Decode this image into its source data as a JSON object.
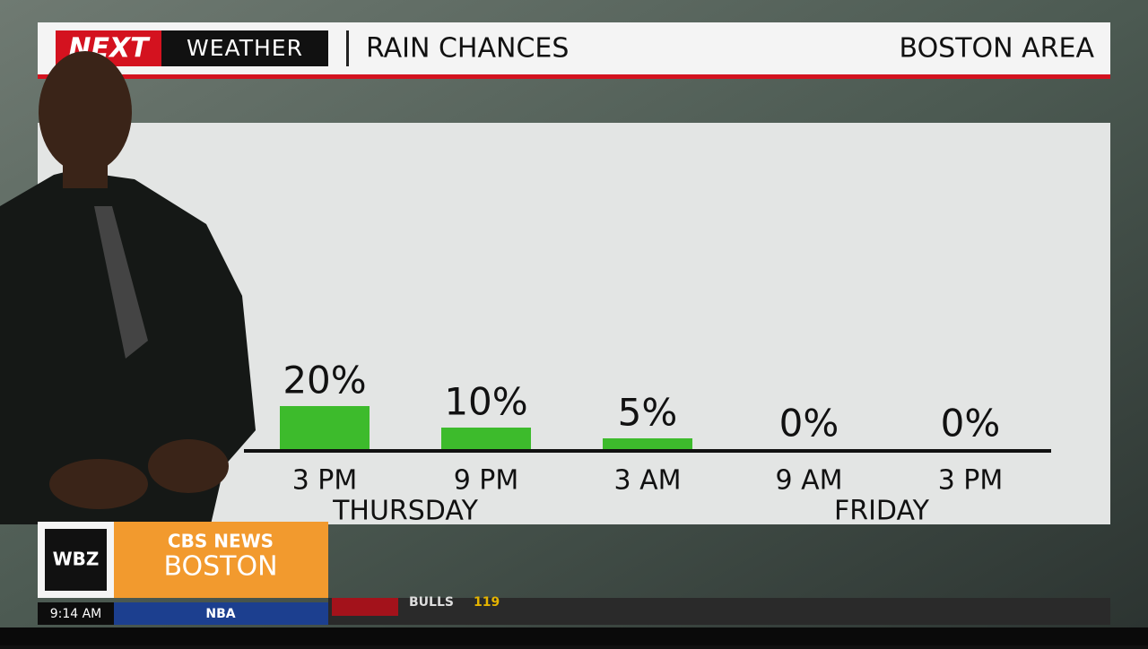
{
  "header": {
    "brand": "NEXT",
    "brand_sub": "WEATHER",
    "location": "BOSTON AREA"
  },
  "chart_data": {
    "type": "bar",
    "title": "RAIN CHANCES",
    "categories": [
      "3 PM",
      "9 PM",
      "3 AM",
      "9 AM",
      "3 PM"
    ],
    "groups": [
      "THURSDAY",
      "FRIDAY"
    ],
    "values": [
      20,
      10,
      5,
      0,
      0
    ],
    "value_labels": [
      "20%",
      "10%",
      "5%",
      "0%",
      "0%"
    ],
    "color": "#3dbb2c"
  },
  "station": {
    "call_sign": "WBZ",
    "network": "CBS NEWS",
    "city": "BOSTON"
  },
  "ticker": {
    "time": "9:14 AM",
    "league": "NBA",
    "score_text": "BULLS",
    "score": "119"
  }
}
